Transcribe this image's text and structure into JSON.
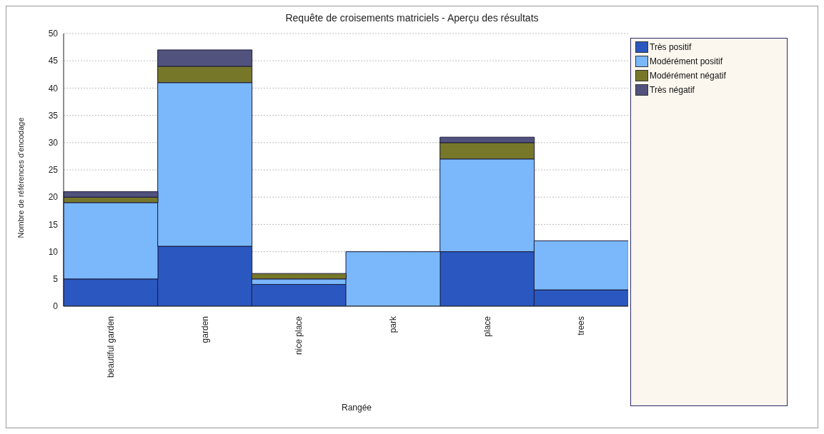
{
  "chart_data": {
    "type": "bar",
    "title": "Requête de croisements matriciels - Aperçu des résultats",
    "xlabel": "Rangée",
    "ylabel": "Nombre de références d'encodage",
    "categories": [
      "beautiful garden",
      "garden",
      "nice place",
      "park",
      "place",
      "trees"
    ],
    "stacked": true,
    "series": [
      {
        "name": "Très positif",
        "color": "#2b58c0",
        "values": [
          5,
          11,
          4,
          0,
          10,
          3
        ]
      },
      {
        "name": "Modérément positif",
        "color": "#7ab8fb",
        "values": [
          14,
          30,
          1,
          10,
          17,
          9
        ]
      },
      {
        "name": "Modérément négatif",
        "color": "#77772a",
        "values": [
          1,
          3,
          1,
          0,
          3,
          0
        ]
      },
      {
        "name": "Très négatif",
        "color": "#52527e",
        "values": [
          1,
          3,
          0,
          0,
          1,
          0
        ]
      }
    ],
    "ylim": [
      0,
      50
    ],
    "yticks": [
      0,
      5,
      10,
      15,
      20,
      25,
      30,
      35,
      40,
      45,
      50
    ],
    "grid": "y",
    "legend": "right"
  }
}
